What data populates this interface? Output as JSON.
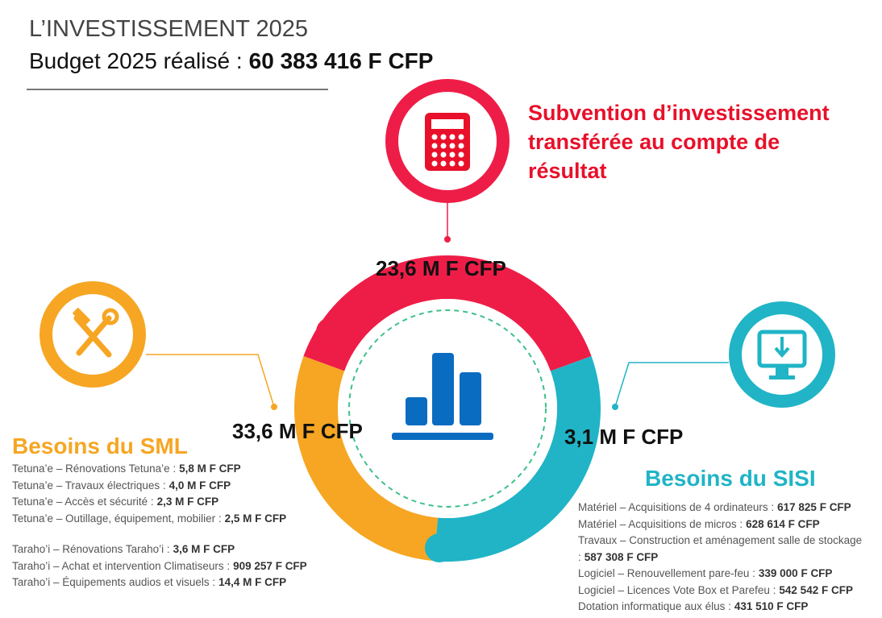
{
  "header": {
    "title": "L’INVESTISSEMENT 2025",
    "subtitle": "Budget 2025 réalisé :",
    "total": "60 383 416 F CFP"
  },
  "top": {
    "title_lines": [
      "Subvention d’investissement",
      "transférée au compte de",
      "résultat"
    ],
    "amount": "23,6 M F CFP"
  },
  "left": {
    "title": "Besoins du SML",
    "amount": "33,6 M F CFP",
    "groups": [
      [
        {
          "label": "Tetuna’e – Rénovations Tetuna’e :",
          "amount": "5,8 M F CFP"
        },
        {
          "label": "Tetuna’e – Travaux électriques :",
          "amount": "4,0 M F CFP"
        },
        {
          "label": "Tetuna’e – Accès et sécurité :",
          "amount": "2,3 M F CFP"
        },
        {
          "label": "Tetuna’e – Outillage, équipement, mobilier :",
          "amount": "2,5 M F CFP"
        }
      ],
      [
        {
          "label": "Taraho’i – Rénovations Taraho’i :",
          "amount": "3,6 M F CFP"
        },
        {
          "label": "Taraho’i – Achat et intervention Climatiseurs :",
          "amount": "909 257 F CFP"
        },
        {
          "label": "Taraho’i – Équipements audios et visuels :",
          "amount": "14,4 M F CFP"
        }
      ]
    ]
  },
  "right": {
    "title": "Besoins du SISI",
    "amount": "3,1 M F CFP",
    "items": [
      {
        "label": "Matériel – Acquisitions de 4 ordinateurs :",
        "amount": "617 825 F CFP"
      },
      {
        "label": "Matériel – Acquisitions de micros :",
        "amount": "628 614 F CFP"
      },
      {
        "label": "Travaux – Construction et aménagement salle de stockage :",
        "amount": "587 308 F CFP"
      },
      {
        "label": "Logiciel – Renouvellement pare-feu :",
        "amount": "339 000 F CFP"
      },
      {
        "label": "Logiciel – Licences Vote Box et Parefeu :",
        "amount": "542 542 F CFP"
      },
      {
        "label": "Dotation informatique aux élus :",
        "amount": "431 510 F CFP"
      }
    ]
  }
}
